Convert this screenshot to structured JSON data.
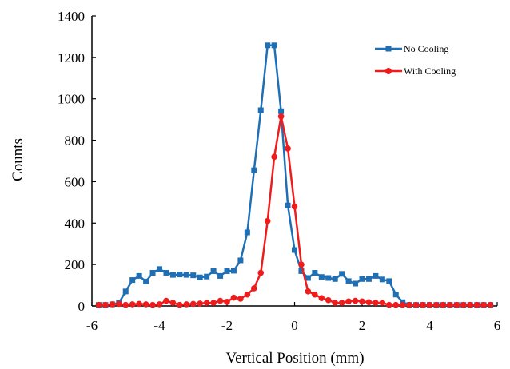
{
  "chart_data": {
    "type": "line",
    "xlabel": "Vertical Position (mm)",
    "ylabel": "Counts",
    "xlim": [
      -6,
      6
    ],
    "ylim": [
      0,
      1400
    ],
    "xticks": [
      "-6",
      "-4",
      "-2",
      "0",
      "2",
      "4",
      "6"
    ],
    "yticks": [
      "0",
      "200",
      "400",
      "600",
      "800",
      "1000",
      "1200",
      "1400"
    ],
    "grid": false,
    "legend_position": "top-right",
    "series": [
      {
        "name": "No Cooling",
        "color": "#1f6fb5",
        "marker": "square",
        "x": [
          -5.8,
          -5.6,
          -5.4,
          -5.2,
          -5.0,
          -4.8,
          -4.6,
          -4.4,
          -4.2,
          -4.0,
          -3.8,
          -3.6,
          -3.4,
          -3.2,
          -3.0,
          -2.8,
          -2.6,
          -2.4,
          -2.2,
          -2.0,
          -1.8,
          -1.6,
          -1.4,
          -1.2,
          -1.0,
          -0.8,
          -0.6,
          -0.4,
          -0.2,
          0.0,
          0.2,
          0.4,
          0.6,
          0.8,
          1.0,
          1.2,
          1.4,
          1.6,
          1.8,
          2.0,
          2.2,
          2.4,
          2.6,
          2.8,
          3.0,
          3.2,
          3.4,
          3.6,
          3.8,
          4.0,
          4.2,
          4.4,
          4.6,
          4.8,
          5.0,
          5.2,
          5.4,
          5.6,
          5.8
        ],
        "values": [
          5,
          5,
          8,
          15,
          70,
          125,
          145,
          118,
          160,
          178,
          160,
          150,
          152,
          150,
          148,
          138,
          142,
          168,
          145,
          168,
          170,
          220,
          355,
          655,
          945,
          1258,
          1258,
          940,
          485,
          270,
          168,
          135,
          160,
          140,
          135,
          130,
          155,
          120,
          108,
          130,
          130,
          145,
          128,
          120,
          55,
          18,
          5,
          5,
          5,
          5,
          5,
          5,
          5,
          5,
          5,
          5,
          5,
          5,
          5
        ]
      },
      {
        "name": "With Cooling",
        "color": "#ee1c1c",
        "marker": "circle",
        "x": [
          -5.8,
          -5.6,
          -5.4,
          -5.2,
          -5.0,
          -4.8,
          -4.6,
          -4.4,
          -4.2,
          -4.0,
          -3.8,
          -3.6,
          -3.4,
          -3.2,
          -3.0,
          -2.8,
          -2.6,
          -2.4,
          -2.2,
          -2.0,
          -1.8,
          -1.6,
          -1.4,
          -1.2,
          -1.0,
          -0.8,
          -0.6,
          -0.4,
          -0.2,
          0.0,
          0.2,
          0.4,
          0.6,
          0.8,
          1.0,
          1.2,
          1.4,
          1.6,
          1.8,
          2.0,
          2.2,
          2.4,
          2.6,
          2.8,
          3.0,
          3.2,
          3.4,
          3.6,
          3.8,
          4.0,
          4.2,
          4.4,
          4.6,
          4.8,
          5.0,
          5.2,
          5.4,
          5.6,
          5.8
        ],
        "values": [
          5,
          5,
          8,
          10,
          5,
          8,
          10,
          8,
          5,
          8,
          25,
          15,
          5,
          8,
          10,
          12,
          15,
          15,
          25,
          20,
          40,
          35,
          55,
          85,
          160,
          410,
          720,
          915,
          760,
          480,
          200,
          70,
          55,
          38,
          28,
          15,
          15,
          22,
          25,
          22,
          18,
          15,
          15,
          5,
          5,
          5,
          5,
          5,
          5,
          5,
          5,
          5,
          5,
          5,
          5,
          5,
          5,
          5,
          5
        ]
      }
    ]
  }
}
